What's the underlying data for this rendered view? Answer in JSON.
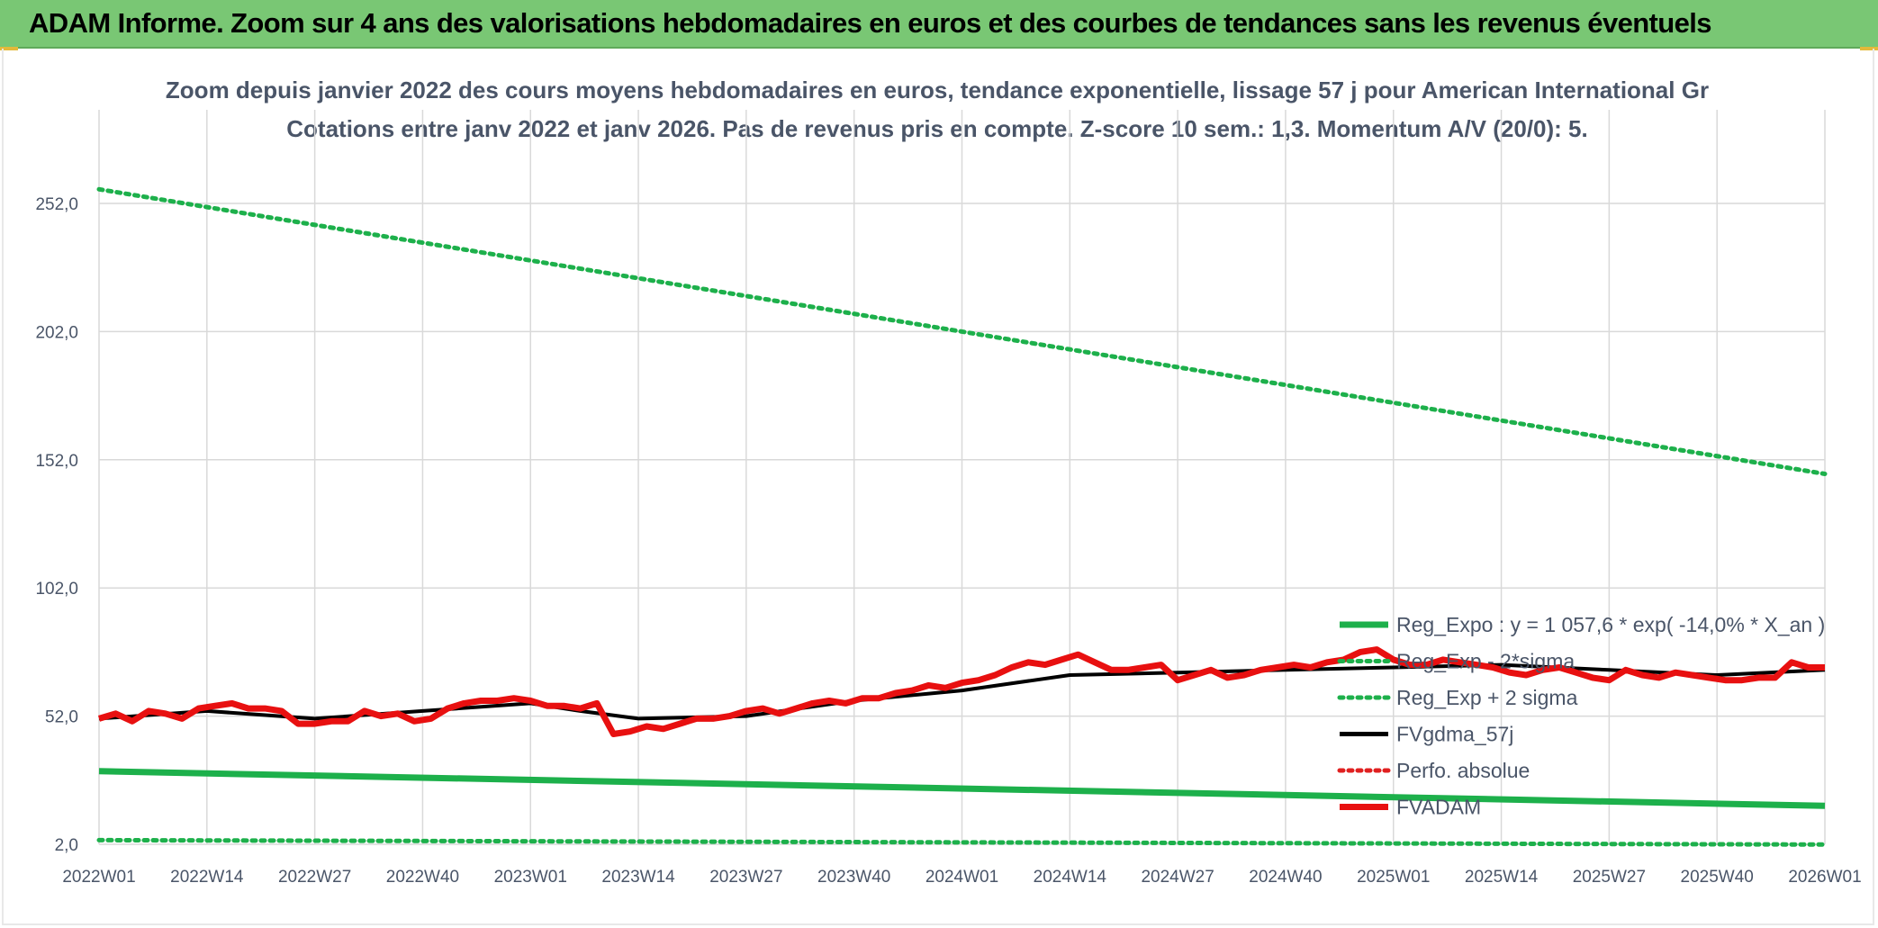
{
  "header": {
    "banner_title": "ADAM Informe. Zoom sur 4 ans des valorisations hebdomadaires en euros et des courbes de tendances sans les revenus éventuels"
  },
  "chart_data": {
    "type": "line",
    "title": "Zoom depuis janvier 2022 des cours moyens hebdomadaires en euros, tendance exponentielle, lissage 57 j pour American International Gr",
    "subtitle": "Cotations entre janv 2022 et janv 2026. Pas de revenus pris en compte. Z-score 10 sem.: 1,3. Momentum A/V (20/0): 5.",
    "xlabel": "",
    "ylabel": "",
    "x_ticks": [
      "2022W01",
      "2022W14",
      "2022W27",
      "2022W40",
      "2023W01",
      "2023W14",
      "2023W27",
      "2023W40",
      "2024W01",
      "2024W14",
      "2024W27",
      "2024W40",
      "2025W01",
      "2025W14",
      "2025W27",
      "2025W40",
      "2026W01"
    ],
    "x_range": [
      0,
      208
    ],
    "y_ticks": [
      "2,0",
      "52,0",
      "102,0",
      "152,0",
      "202,0",
      "252,0"
    ],
    "ylim": [
      2,
      252
    ],
    "grid": true,
    "legend_position": "bottom-right",
    "series": [
      {
        "name": "Reg_Expo : y = 1 057,6 * exp( -14,0% *  X_an )",
        "style": "solid",
        "color": "#1db04b",
        "x": [
          0,
          208
        ],
        "values": [
          30.5,
          17.0
        ]
      },
      {
        "name": "Reg_Exp - 2*sigma",
        "style": "dotted",
        "color": "#1db04b",
        "x": [
          0,
          208
        ],
        "values": [
          3.6,
          1.9
        ]
      },
      {
        "name": "Reg_Exp + 2 sigma",
        "style": "dotted",
        "color": "#1db04b",
        "x": [
          0,
          208
        ],
        "values": [
          257.5,
          146.5
        ]
      },
      {
        "name": "FVgdma_57j",
        "style": "solid",
        "color": "#000000",
        "x": [
          0,
          13,
          26,
          39,
          52,
          58,
          65,
          78,
          91,
          104,
          117,
          130,
          143,
          156,
          169,
          182,
          195,
          208
        ],
        "values": [
          51,
          54,
          51,
          54,
          57,
          54,
          51,
          52,
          58,
          62,
          68,
          69,
          70,
          71,
          72,
          70,
          68,
          70
        ]
      },
      {
        "name": "Perfo. absolue",
        "style": "dotted",
        "color": "#e02020",
        "x": [],
        "values": []
      },
      {
        "name": "FVADAM",
        "style": "solid",
        "color": "#e81010",
        "x": [
          0,
          2,
          4,
          6,
          8,
          10,
          12,
          14,
          16,
          18,
          20,
          22,
          24,
          26,
          28,
          30,
          32,
          34,
          36,
          38,
          40,
          42,
          44,
          46,
          48,
          50,
          52,
          54,
          56,
          58,
          60,
          62,
          64,
          66,
          68,
          70,
          72,
          74,
          76,
          78,
          80,
          82,
          84,
          86,
          88,
          90,
          92,
          94,
          96,
          98,
          100,
          102,
          104,
          106,
          108,
          110,
          112,
          114,
          116,
          118,
          120,
          122,
          124,
          126,
          128,
          130,
          132,
          134,
          136,
          138,
          140,
          142,
          144,
          146,
          148,
          150,
          152,
          154,
          156,
          158,
          160,
          162,
          164,
          166,
          168,
          170,
          172,
          174,
          176,
          178,
          180,
          182,
          184,
          186,
          188,
          190,
          192,
          194,
          196,
          198,
          200,
          202,
          204,
          206,
          208
        ],
        "values": [
          51,
          53,
          50,
          54,
          53,
          51,
          55,
          56,
          57,
          55,
          55,
          54,
          49,
          49,
          50,
          50,
          54,
          52,
          53,
          50,
          51,
          55,
          57,
          58,
          58,
          59,
          58,
          56,
          56,
          55,
          57,
          45,
          46,
          48,
          47,
          49,
          51,
          51,
          52,
          54,
          55,
          53,
          55,
          57,
          58,
          57,
          59,
          59,
          61,
          62,
          64,
          63,
          65,
          66,
          68,
          71,
          73,
          72,
          74,
          76,
          73,
          70,
          70,
          71,
          72,
          66,
          68,
          70,
          67,
          68,
          70,
          71,
          72,
          71,
          73,
          74,
          77,
          78,
          74,
          72,
          72,
          74,
          73,
          72,
          71,
          69,
          68,
          70,
          71,
          69,
          67,
          66,
          70,
          68,
          67,
          69,
          68,
          67,
          66,
          66,
          67,
          67,
          73,
          71,
          71
        ]
      }
    ]
  }
}
